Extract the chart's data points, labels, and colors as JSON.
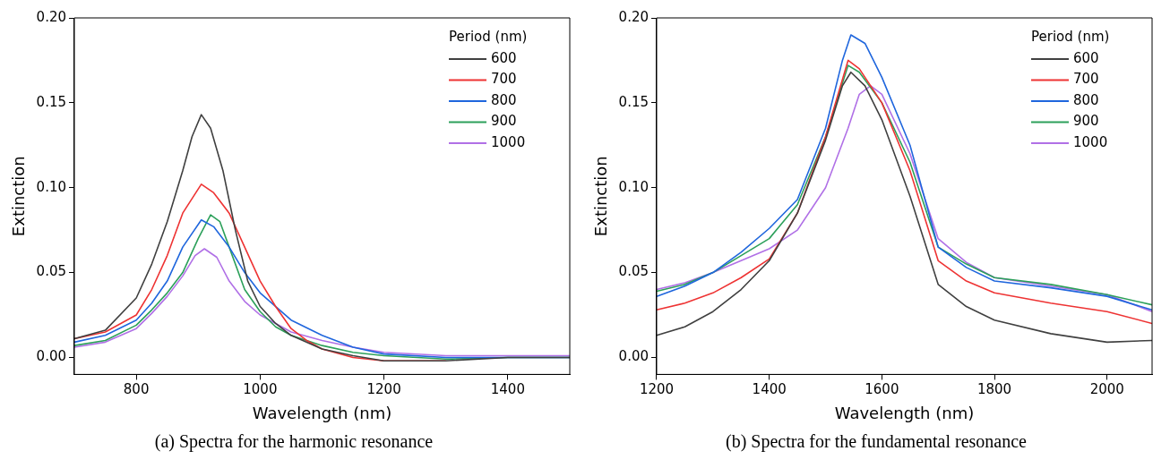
{
  "chart_data": [
    {
      "type": "line",
      "xlabel": "Wavelength (nm)",
      "ylabel": "Extinction",
      "legend_title": "Period (nm)",
      "legend": "top right",
      "grid": false,
      "marker": "none",
      "line_style": "solid",
      "xlim": [
        700,
        1500
      ],
      "ylim": [
        -0.01,
        0.2
      ],
      "xticks": [
        800,
        1000,
        1200,
        1400
      ],
      "yticks": [
        {
          "value": 0,
          "label": "0.00"
        },
        {
          "value": 0.05,
          "label": "0.05"
        },
        {
          "value": 0.1,
          "label": "0.10"
        },
        {
          "value": 0.15,
          "label": "0.15"
        },
        {
          "value": 0.2,
          "label": "0.20"
        }
      ],
      "annotations": [
        "(a) Spectra for the harmonic resonance"
      ],
      "x": [
        700,
        750,
        800,
        825,
        850,
        875,
        890,
        905,
        920,
        940,
        960,
        980,
        1000,
        1025,
        1050,
        1100,
        1150,
        1200,
        1300,
        1400,
        1500
      ],
      "series": [
        {
          "name": "600",
          "color": "#404040",
          "values": [
            0.011,
            0.016,
            0.035,
            0.055,
            0.08,
            0.11,
            0.13,
            0.143,
            0.135,
            0.11,
            0.075,
            0.045,
            0.03,
            0.02,
            0.013,
            0.005,
            0.001,
            -0.002,
            -0.002,
            0,
            0
          ]
        },
        {
          "name": "700",
          "color": "#ee3333",
          "x": [
            700,
            750,
            800,
            825,
            850,
            875,
            905,
            925,
            950,
            975,
            1000,
            1025,
            1050,
            1075,
            1100,
            1150,
            1200,
            1300
          ],
          "values": [
            0.011,
            0.015,
            0.025,
            0.04,
            0.06,
            0.085,
            0.102,
            0.097,
            0.085,
            0.065,
            0.045,
            0.03,
            0.017,
            0.01,
            0.005,
            0,
            -0.002,
            -0.002
          ]
        },
        {
          "name": "800",
          "color": "#1f66dd",
          "x": [
            700,
            750,
            800,
            825,
            850,
            875,
            905,
            925,
            950,
            975,
            1000,
            1050,
            1100,
            1150,
            1200,
            1300,
            1400,
            1500
          ],
          "values": [
            0.009,
            0.013,
            0.022,
            0.032,
            0.045,
            0.065,
            0.081,
            0.077,
            0.065,
            0.05,
            0.038,
            0.022,
            0.013,
            0.006,
            0.002,
            0,
            0,
            0
          ]
        },
        {
          "name": "900",
          "color": "#2ca05a",
          "x": [
            700,
            750,
            800,
            825,
            850,
            875,
            900,
            920,
            935,
            950,
            975,
            1000,
            1025,
            1050,
            1100,
            1150,
            1200,
            1300,
            1400,
            1500
          ],
          "values": [
            0.007,
            0.01,
            0.019,
            0.028,
            0.038,
            0.05,
            0.07,
            0.084,
            0.08,
            0.065,
            0.04,
            0.027,
            0.018,
            0.013,
            0.007,
            0.003,
            0.001,
            -0.001,
            0,
            0
          ]
        },
        {
          "name": "1000",
          "color": "#b070e6",
          "x": [
            700,
            750,
            800,
            825,
            850,
            875,
            895,
            910,
            930,
            950,
            975,
            1000,
            1050,
            1100,
            1150,
            1200,
            1300,
            1400,
            1500
          ],
          "values": [
            0.006,
            0.009,
            0.017,
            0.026,
            0.036,
            0.048,
            0.06,
            0.064,
            0.059,
            0.045,
            0.033,
            0.025,
            0.015,
            0.01,
            0.006,
            0.003,
            0.001,
            0.001,
            0.001
          ]
        }
      ]
    },
    {
      "type": "line",
      "xlabel": "Wavelength (nm)",
      "ylabel": "Extinction",
      "legend_title": "Period (nm)",
      "legend": "top right",
      "grid": false,
      "marker": "none",
      "line_style": "solid",
      "xlim": [
        1200,
        2080
      ],
      "ylim": [
        -0.01,
        0.2
      ],
      "xticks": [
        1200,
        1400,
        1600,
        1800,
        2000
      ],
      "yticks": [
        {
          "value": 0,
          "label": "0.00"
        },
        {
          "value": 0.05,
          "label": "0.05"
        },
        {
          "value": 0.1,
          "label": "0.10"
        },
        {
          "value": 0.15,
          "label": "0.15"
        },
        {
          "value": 0.2,
          "label": "0.20"
        }
      ],
      "annotations": [
        "(b) Spectra for the fundamental resonance"
      ],
      "x": [
        1200,
        1250,
        1300,
        1350,
        1400,
        1450,
        1500,
        1530,
        1545,
        1570,
        1600,
        1650,
        1700,
        1750,
        1800,
        1900,
        2000,
        2080
      ],
      "series": [
        {
          "name": "600",
          "color": "#404040",
          "values": [
            0.013,
            0.018,
            0.027,
            0.04,
            0.057,
            0.085,
            0.128,
            0.16,
            0.168,
            0.16,
            0.14,
            0.095,
            0.043,
            0.03,
            0.022,
            0.014,
            0.009,
            0.01
          ]
        },
        {
          "name": "700",
          "color": "#ee3333",
          "x": [
            1200,
            1250,
            1300,
            1350,
            1400,
            1450,
            1500,
            1540,
            1560,
            1600,
            1650,
            1700,
            1750,
            1800,
            1900,
            2000,
            2080
          ],
          "values": [
            0.028,
            0.032,
            0.038,
            0.047,
            0.058,
            0.085,
            0.13,
            0.175,
            0.17,
            0.15,
            0.11,
            0.057,
            0.045,
            0.038,
            0.032,
            0.027,
            0.02
          ]
        },
        {
          "name": "800",
          "color": "#1f66dd",
          "values": [
            0.036,
            0.042,
            0.05,
            0.062,
            0.076,
            0.093,
            0.135,
            0.175,
            0.19,
            0.185,
            0.165,
            0.125,
            0.065,
            0.053,
            0.045,
            0.041,
            0.036,
            0.028
          ]
        },
        {
          "name": "900",
          "color": "#2ca05a",
          "x": [
            1200,
            1250,
            1300,
            1350,
            1400,
            1450,
            1500,
            1540,
            1560,
            1600,
            1650,
            1700,
            1750,
            1800,
            1900,
            2000,
            2080
          ],
          "values": [
            0.039,
            0.043,
            0.05,
            0.06,
            0.07,
            0.09,
            0.13,
            0.172,
            0.168,
            0.15,
            0.115,
            0.065,
            0.055,
            0.047,
            0.043,
            0.037,
            0.031
          ]
        },
        {
          "name": "1000",
          "color": "#b070e6",
          "x": [
            1200,
            1250,
            1300,
            1350,
            1400,
            1450,
            1500,
            1540,
            1560,
            1580,
            1600,
            1650,
            1700,
            1750,
            1800,
            1900,
            2000,
            2080
          ],
          "values": [
            0.04,
            0.044,
            0.05,
            0.057,
            0.064,
            0.075,
            0.1,
            0.135,
            0.155,
            0.16,
            0.155,
            0.12,
            0.07,
            0.056,
            0.047,
            0.042,
            0.037,
            0.027
          ]
        }
      ]
    }
  ]
}
